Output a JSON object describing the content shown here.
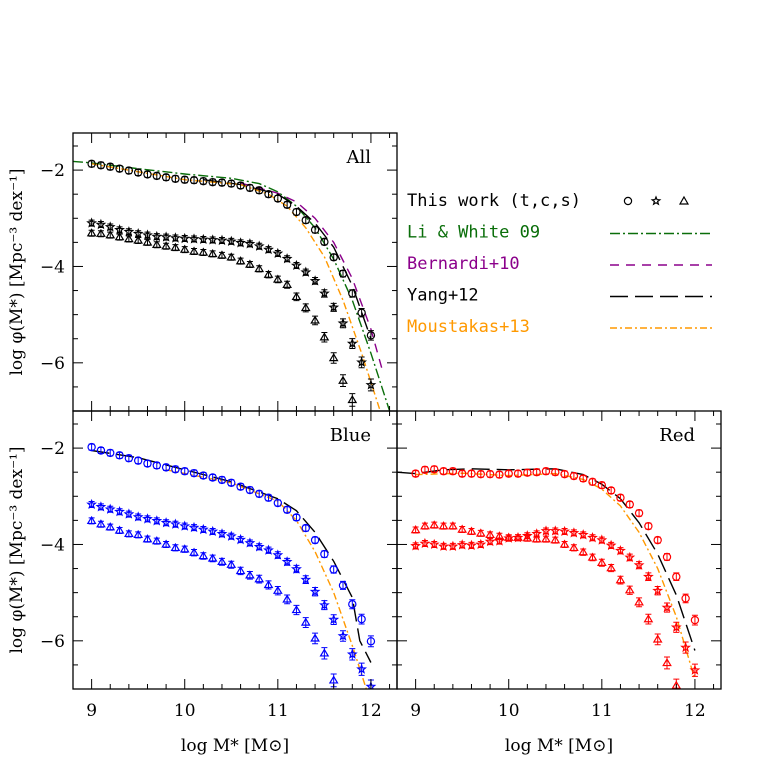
{
  "chart_data": {
    "type": "scatter",
    "xlabel": "log M* [M⊙]",
    "ylabel": "log φ(M*) [Mpc⁻³ dex⁻¹]",
    "xlim": [
      8.8,
      12.28
    ],
    "ylim": [
      -7.0,
      -1.23
    ],
    "x_ticks": [
      "9",
      "10",
      "11",
      "12"
    ],
    "y_ticks": [
      "−2",
      "−4",
      "−6"
    ],
    "x": [
      9.0,
      9.1,
      9.2,
      9.3,
      9.4,
      9.5,
      9.6,
      9.7,
      9.8,
      9.9,
      10.0,
      10.1,
      10.2,
      10.3,
      10.4,
      10.5,
      10.6,
      10.7,
      10.8,
      10.9,
      11.0,
      11.1,
      11.2,
      11.3,
      11.4,
      11.5,
      11.6,
      11.7,
      11.8,
      11.9,
      12.0
    ],
    "legend": {
      "placement": "right-of-top-panel",
      "entries": [
        {
          "label": "This work (t,c,s)",
          "color": "#000000",
          "style": "markers"
        },
        {
          "label": "Li & White 09",
          "color": "#0a6e0a",
          "style": "dash-dot"
        },
        {
          "label": "Bernardi+10",
          "color": "#8b008b",
          "style": "dashed"
        },
        {
          "label": "Yang+12",
          "color": "#000000",
          "style": "long-dash"
        },
        {
          "label": "Moustakas+13",
          "color": "#ff9900",
          "style": "dash-dot"
        }
      ]
    },
    "panels": [
      {
        "label": "All",
        "color": "#000000",
        "series": [
          {
            "marker": "circle",
            "values": [
              -1.87,
              -1.9,
              -1.93,
              -1.97,
              -2.01,
              -2.05,
              -2.09,
              -2.12,
              -2.15,
              -2.18,
              -2.2,
              -2.21,
              -2.23,
              -2.25,
              -2.26,
              -2.28,
              -2.32,
              -2.37,
              -2.42,
              -2.5,
              -2.59,
              -2.72,
              -2.87,
              -3.04,
              -3.24,
              -3.49,
              -3.81,
              -4.15,
              -4.56,
              -4.96,
              -5.43
            ]
          },
          {
            "marker": "star",
            "values": [
              -3.1,
              -3.13,
              -3.18,
              -3.24,
              -3.28,
              -3.32,
              -3.35,
              -3.38,
              -3.39,
              -3.41,
              -3.42,
              -3.43,
              -3.44,
              -3.45,
              -3.46,
              -3.48,
              -3.51,
              -3.53,
              -3.58,
              -3.65,
              -3.73,
              -3.84,
              -3.98,
              -4.12,
              -4.3,
              -4.56,
              -4.85,
              -5.18,
              -5.6,
              -5.99,
              -6.46
            ]
          },
          {
            "marker": "triangle",
            "values": [
              -3.31,
              -3.32,
              -3.35,
              -3.39,
              -3.43,
              -3.46,
              -3.5,
              -3.55,
              -3.58,
              -3.61,
              -3.65,
              -3.69,
              -3.71,
              -3.74,
              -3.77,
              -3.81,
              -3.89,
              -3.96,
              -4.05,
              -4.17,
              -4.27,
              -4.38,
              -4.63,
              -4.86,
              -5.12,
              -5.47,
              -5.9,
              -6.37,
              -6.77
            ]
          }
        ],
        "models": [
          {
            "name": "Li & White 09",
            "x": [
              8.8,
              9.0,
              9.5,
              10.0,
              10.5,
              10.8,
              11.0,
              11.2,
              11.4,
              11.6,
              11.8,
              12.0,
              12.2
            ],
            "y": [
              -1.82,
              -1.85,
              -1.97,
              -2.08,
              -2.17,
              -2.28,
              -2.45,
              -2.75,
              -3.2,
              -3.85,
              -4.7,
              -5.8,
              -7.0
            ]
          },
          {
            "name": "Bernardi+10",
            "x": [
              10.6,
              11.0,
              11.2,
              11.4,
              11.6,
              11.8,
              12.0,
              12.13
            ],
            "y": [
              -2.27,
              -2.48,
              -2.66,
              -3.0,
              -3.5,
              -4.25,
              -5.3,
              -6.2
            ]
          },
          {
            "name": "Yang+12",
            "x": [
              10.2,
              10.6,
              11.0,
              11.2,
              11.4,
              11.6,
              11.8,
              12.0
            ],
            "y": [
              -2.2,
              -2.3,
              -2.5,
              -2.75,
              -3.1,
              -3.6,
              -4.4,
              -5.5
            ]
          },
          {
            "name": "Moustakas+13",
            "x": [
              9.0,
              10.0,
              10.6,
              10.9,
              11.1,
              11.3,
              11.5,
              11.7,
              11.9,
              12.1
            ],
            "y": [
              -1.87,
              -2.2,
              -2.3,
              -2.5,
              -2.75,
              -3.2,
              -3.8,
              -4.7,
              -5.8,
              -7.0
            ]
          }
        ]
      },
      {
        "label": "Blue",
        "color": "#0000ff",
        "series": [
          {
            "marker": "circle",
            "values": [
              -1.98,
              -2.05,
              -2.1,
              -2.15,
              -2.21,
              -2.26,
              -2.32,
              -2.36,
              -2.4,
              -2.44,
              -2.48,
              -2.52,
              -2.57,
              -2.61,
              -2.66,
              -2.72,
              -2.8,
              -2.87,
              -2.95,
              -3.03,
              -3.14,
              -3.28,
              -3.44,
              -3.66,
              -3.91,
              -4.2,
              -4.52,
              -4.85,
              -5.24,
              -5.55,
              -6.01
            ]
          },
          {
            "marker": "star",
            "values": [
              -3.17,
              -3.22,
              -3.27,
              -3.32,
              -3.37,
              -3.43,
              -3.47,
              -3.51,
              -3.55,
              -3.58,
              -3.62,
              -3.65,
              -3.69,
              -3.73,
              -3.78,
              -3.83,
              -3.9,
              -3.97,
              -4.05,
              -4.12,
              -4.22,
              -4.36,
              -4.51,
              -4.73,
              -4.98,
              -5.26,
              -5.56,
              -5.9,
              -6.28,
              -6.59,
              -6.95
            ]
          },
          {
            "marker": "triangle",
            "values": [
              -3.51,
              -3.58,
              -3.64,
              -3.71,
              -3.78,
              -3.8,
              -3.89,
              -3.93,
              -4.0,
              -4.07,
              -4.1,
              -4.17,
              -4.24,
              -4.29,
              -4.36,
              -4.42,
              -4.55,
              -4.64,
              -4.72,
              -4.84,
              -4.96,
              -5.14,
              -5.36,
              -5.62,
              -5.95,
              -6.26,
              -6.82
            ]
          }
        ],
        "models": [
          {
            "name": "Yang+12",
            "x": [
              9.0,
              9.5,
              10.0,
              10.5,
              11.0,
              11.2,
              11.4,
              11.6,
              11.8,
              11.88,
              12.0
            ],
            "y": [
              -2.05,
              -2.2,
              -2.45,
              -2.7,
              -3.05,
              -3.3,
              -3.75,
              -4.35,
              -5.1,
              -6.0,
              -6.45
            ]
          },
          {
            "name": "Moustakas+13",
            "x": [
              9.8,
              10.5,
              11.0,
              11.2,
              11.4,
              11.6,
              11.8,
              11.95
            ],
            "y": [
              -2.45,
              -2.72,
              -3.1,
              -3.5,
              -4.15,
              -5.0,
              -6.1,
              -7.0
            ]
          }
        ]
      },
      {
        "label": "Red",
        "color": "#ff0000",
        "series": [
          {
            "marker": "circle",
            "values": [
              -2.53,
              -2.45,
              -2.44,
              -2.48,
              -2.48,
              -2.53,
              -2.53,
              -2.54,
              -2.54,
              -2.55,
              -2.53,
              -2.53,
              -2.51,
              -2.5,
              -2.48,
              -2.5,
              -2.54,
              -2.58,
              -2.63,
              -2.7,
              -2.77,
              -2.88,
              -3.03,
              -3.17,
              -3.35,
              -3.62,
              -3.91,
              -4.26,
              -4.67,
              -5.12,
              -5.57
            ]
          },
          {
            "marker": "star",
            "values": [
              -4.03,
              -3.98,
              -4.0,
              -4.04,
              -4.04,
              -4.01,
              -4.02,
              -4.0,
              -3.94,
              -3.93,
              -3.87,
              -3.86,
              -3.82,
              -3.78,
              -3.72,
              -3.72,
              -3.73,
              -3.76,
              -3.8,
              -3.86,
              -3.91,
              -4.02,
              -4.13,
              -4.27,
              -4.43,
              -4.67,
              -4.96,
              -5.31,
              -5.72,
              -6.14,
              -6.61
            ]
          },
          {
            "marker": "triangle",
            "values": [
              -3.7,
              -3.62,
              -3.6,
              -3.62,
              -3.62,
              -3.69,
              -3.73,
              -3.77,
              -3.8,
              -3.83,
              -3.86,
              -3.86,
              -3.87,
              -3.89,
              -3.89,
              -3.91,
              -4.0,
              -4.07,
              -4.16,
              -4.27,
              -4.38,
              -4.49,
              -4.74,
              -4.95,
              -5.2,
              -5.55,
              -5.97,
              -6.46,
              -6.93
            ]
          }
        ],
        "models": [
          {
            "name": "Yang+12",
            "x": [
              8.8,
              9.0,
              9.3,
              9.6,
              10.0,
              10.5,
              10.8,
              11.0,
              11.2,
              11.4,
              11.6,
              11.8,
              12.0
            ],
            "y": [
              -2.5,
              -2.53,
              -2.45,
              -2.43,
              -2.45,
              -2.43,
              -2.55,
              -2.75,
              -3.05,
              -3.55,
              -4.2,
              -5.05,
              -6.2
            ]
          },
          {
            "name": "Moustakas+13",
            "x": [
              9.0,
              9.5,
              10.0,
              10.5,
              10.8,
              11.0,
              11.2,
              11.4,
              11.6,
              11.8,
              12.0
            ],
            "y": [
              -2.55,
              -2.52,
              -2.57,
              -2.53,
              -2.65,
              -2.85,
              -3.2,
              -3.75,
              -4.5,
              -5.5,
              -6.8
            ]
          }
        ]
      }
    ]
  }
}
